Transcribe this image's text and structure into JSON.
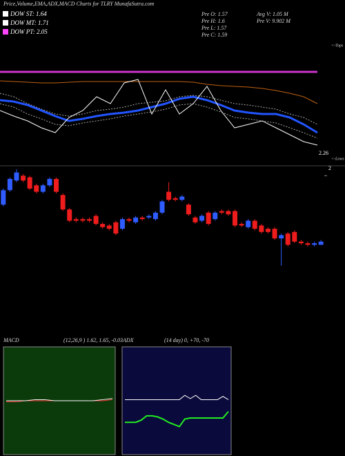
{
  "header": {
    "legend": [
      {
        "label": "DOW ST:",
        "value": 1.64,
        "color": "#ffffff"
      },
      {
        "label": "DOW MT:",
        "value": 1.71,
        "color": "#ffffff"
      },
      {
        "label": "DOW PT:",
        "value": 2.05,
        "color": "#ff44ff"
      }
    ],
    "stats_left": [
      {
        "label": "Pre  O:",
        "value": 1.57
      },
      {
        "label": "Pre  H:",
        "value": 1.6
      },
      {
        "label": "Pre  L:",
        "value": 1.57
      },
      {
        "label": "Pre  C:",
        "value": 1.59
      }
    ],
    "stats_right": [
      {
        "label": "Avg V:",
        "value": "1.05 M"
      },
      {
        "label": "Pre  V:",
        "value": "9.902 M"
      }
    ]
  },
  "chart_data": [
    {
      "type": "line",
      "title": "Price,Volume,EMA,ADX,MACD Charts for TLRY MunafaSutra.com",
      "ylim": [
        0,
        180
      ],
      "last_value": 2.26,
      "annotations": [
        "<-Tops",
        "<-Lows"
      ],
      "series": [
        {
          "color": "#cc33cc",
          "width": 3,
          "values": [
            136,
            136,
            136,
            136,
            136,
            136,
            136,
            136,
            136,
            136,
            136,
            136,
            136,
            136,
            136,
            136,
            136,
            136,
            136,
            136,
            136,
            136,
            136,
            136
          ]
        },
        {
          "color": "#c06010",
          "width": 1,
          "values": [
            123,
            122,
            121,
            120,
            120,
            121,
            122,
            122,
            122,
            122,
            122,
            122,
            122,
            122,
            121,
            118,
            116,
            115,
            114,
            112,
            109,
            105,
            100,
            90
          ]
        },
        {
          "color": "#aaaaaa",
          "width": 1,
          "dash": true,
          "values": [
            105,
            100,
            90,
            82,
            75,
            72,
            75,
            80,
            82,
            85,
            90,
            92,
            94,
            100,
            102,
            100,
            95,
            90,
            88,
            85,
            82,
            75,
            70,
            60
          ]
        },
        {
          "color": "#aaaaaa",
          "width": 1,
          "dash": true,
          "values": [
            90,
            85,
            75,
            68,
            60,
            58,
            62,
            65,
            68,
            72,
            75,
            78,
            82,
            88,
            90,
            85,
            78,
            70,
            68,
            65,
            62,
            55,
            48,
            40
          ]
        },
        {
          "color": "#2255ff",
          "width": 3,
          "values": [
            95,
            93,
            88,
            80,
            72,
            65,
            68,
            72,
            75,
            77,
            80,
            85,
            90,
            97,
            100,
            95,
            88,
            80,
            77,
            75,
            75,
            70,
            60,
            48
          ]
        },
        {
          "color": "#ffffff",
          "width": 1,
          "values": [
            80,
            72,
            65,
            55,
            48,
            70,
            80,
            100,
            90,
            120,
            125,
            75,
            110,
            75,
            90,
            115,
            80,
            55,
            60,
            65,
            55,
            45,
            35,
            30
          ]
        }
      ]
    },
    {
      "type": "candlestick",
      "ylim": [
        1.03,
        2.04
      ],
      "yticks": [
        2
      ],
      "up_color": "#2f5cff",
      "down_color": "#ee1c1c",
      "open": [
        1.82,
        1.91,
        1.97,
        2.0,
        1.99,
        1.94,
        1.9,
        1.94,
        1.98,
        1.88,
        1.79,
        1.73,
        1.73,
        1.73,
        1.75,
        1.7,
        1.69,
        1.71,
        1.67,
        1.73,
        1.71,
        1.74,
        1.74,
        1.73,
        1.77,
        1.9,
        1.86,
        1.85,
        1.82,
        1.74,
        1.72,
        1.77,
        1.73,
        1.78,
        1.78,
        1.78,
        1.7,
        1.68,
        1.72,
        1.69,
        1.67,
        1.67,
        1.61,
        1.64,
        1.65,
        1.59,
        1.58,
        1.57,
        1.57
      ],
      "high": [
        1.92,
        1.99,
        2.04,
        2.01,
        2.0,
        1.95,
        1.95,
        1.99,
        1.99,
        1.89,
        1.8,
        1.74,
        1.74,
        1.74,
        1.76,
        1.71,
        1.7,
        1.72,
        1.74,
        1.74,
        1.75,
        1.75,
        1.76,
        1.78,
        1.85,
        1.96,
        1.87,
        1.88,
        1.83,
        1.75,
        1.76,
        1.78,
        1.78,
        1.79,
        1.79,
        1.79,
        1.71,
        1.73,
        1.73,
        1.7,
        1.68,
        1.68,
        1.64,
        1.65,
        1.66,
        1.6,
        1.59,
        1.59,
        1.6
      ],
      "low": [
        1.81,
        1.9,
        1.96,
        1.96,
        1.91,
        1.89,
        1.89,
        1.93,
        1.89,
        1.78,
        1.71,
        1.71,
        1.71,
        1.71,
        1.69,
        1.67,
        1.66,
        1.63,
        1.66,
        1.71,
        1.7,
        1.72,
        1.73,
        1.72,
        1.76,
        1.84,
        1.84,
        1.84,
        1.75,
        1.7,
        1.71,
        1.69,
        1.72,
        1.76,
        1.75,
        1.68,
        1.68,
        1.67,
        1.66,
        1.64,
        1.64,
        1.6,
        1.44,
        1.56,
        1.58,
        1.57,
        1.56,
        1.56,
        1.57
      ],
      "close": [
        1.91,
        1.98,
        2.02,
        1.97,
        1.92,
        1.9,
        1.94,
        1.98,
        1.9,
        1.79,
        1.72,
        1.72,
        1.72,
        1.72,
        1.7,
        1.68,
        1.67,
        1.64,
        1.73,
        1.72,
        1.74,
        1.73,
        1.75,
        1.77,
        1.84,
        1.85,
        1.85,
        1.87,
        1.76,
        1.71,
        1.75,
        1.7,
        1.77,
        1.77,
        1.76,
        1.69,
        1.69,
        1.72,
        1.67,
        1.65,
        1.65,
        1.61,
        1.63,
        1.57,
        1.59,
        1.58,
        1.57,
        1.58,
        1.59
      ]
    },
    {
      "type": "line",
      "title": "MACD",
      "subtitle": "(12,26,9 ) 1.62, 1.65, -0.03",
      "ylim": [
        0,
        100
      ],
      "background": "#0b3a0b",
      "series": [
        {
          "color": "#ff3030",
          "width": 1,
          "values": [
            49,
            49,
            50,
            50,
            50,
            50,
            50,
            50,
            50,
            50,
            50,
            51
          ]
        },
        {
          "color": "#ffffff",
          "width": 1,
          "values": [
            50,
            50,
            50,
            51,
            51,
            50,
            50,
            50,
            50,
            50,
            51,
            52
          ]
        }
      ]
    },
    {
      "type": "line",
      "title": "ADX",
      "subtitle": "(14 day) 0, +70, -70",
      "ylim": [
        0,
        100
      ],
      "background": "#0a0a3c",
      "series": [
        {
          "color": "#ffffff",
          "width": 1,
          "values": [
            51,
            51,
            51,
            51,
            51,
            51,
            51,
            51,
            51,
            51,
            51,
            55,
            52,
            55,
            51,
            51,
            51,
            51,
            54,
            51
          ]
        },
        {
          "color": "#22ee22",
          "width": 2,
          "values": [
            30,
            30,
            30,
            32,
            36,
            36,
            35,
            33,
            30,
            28,
            26,
            33,
            34,
            34,
            34,
            34,
            34,
            34,
            34,
            40
          ]
        }
      ]
    }
  ]
}
